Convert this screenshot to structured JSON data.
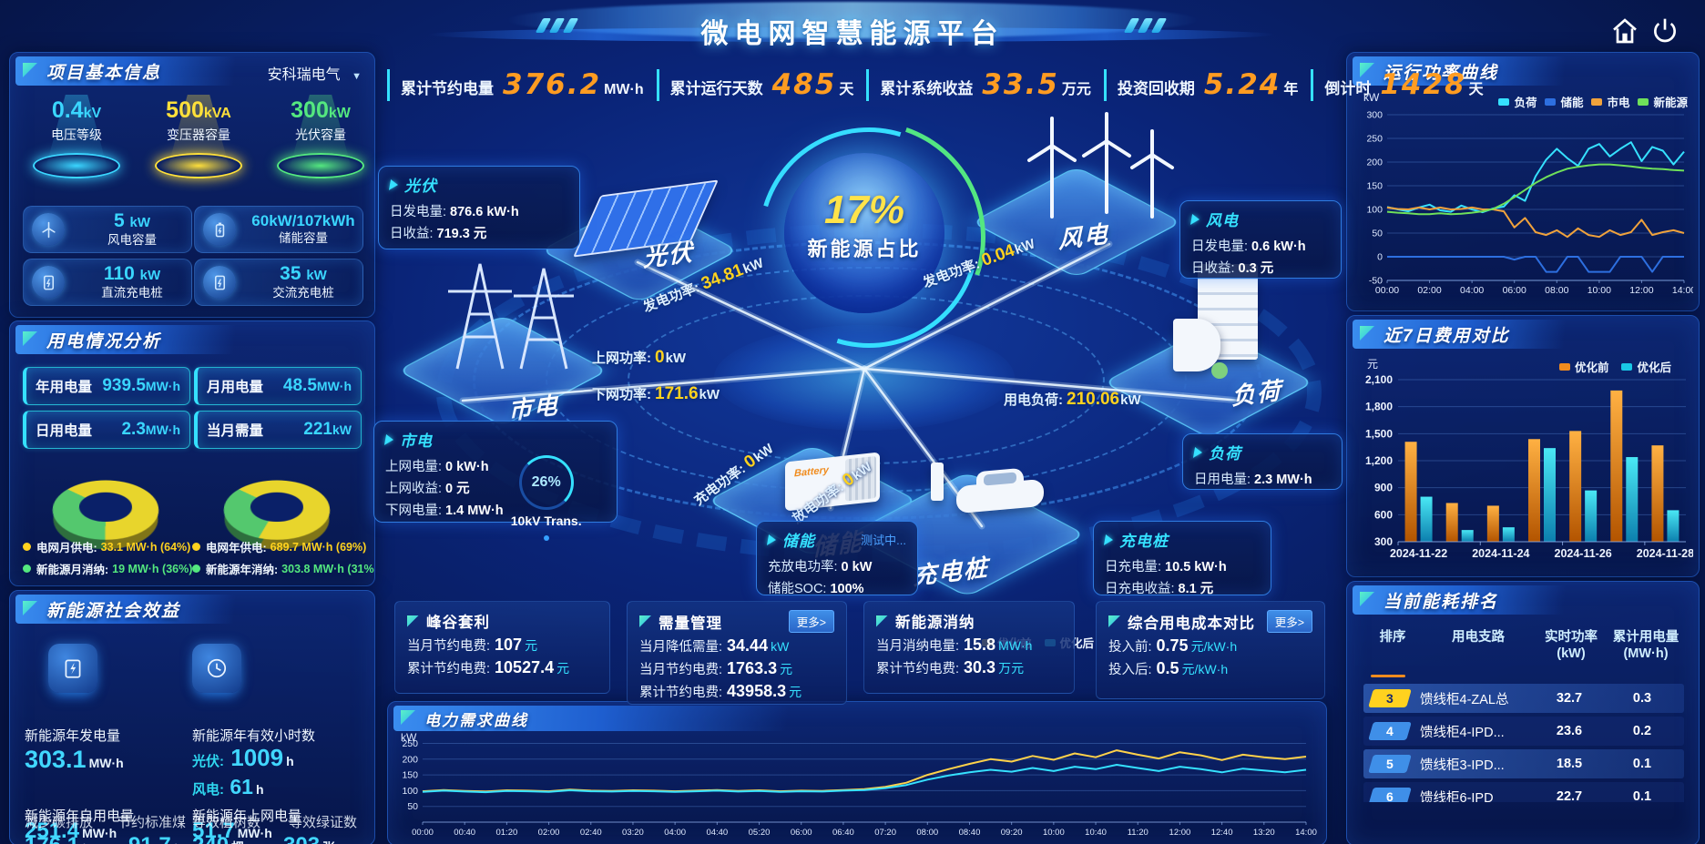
{
  "app": {
    "title": "微电网智慧能源平台"
  },
  "kpi_bar": [
    {
      "label": "累计节约电量",
      "value": "376.2",
      "unit": "MW·h"
    },
    {
      "label": "累计运行天数",
      "value": "485",
      "unit": "天"
    },
    {
      "label": "累计系统收益",
      "value": "33.5",
      "unit": "万元"
    },
    {
      "label": "投资回收期",
      "value": "5.24",
      "unit": "年"
    },
    {
      "label": "倒计时",
      "value": "1428",
      "unit": "天"
    }
  ],
  "project_info": {
    "title": "项目基本信息",
    "company": "安科瑞电气",
    "cones": [
      {
        "value": "0.4",
        "unit": "kV",
        "label": "电压等级",
        "color": "#3ad6ff"
      },
      {
        "value": "500",
        "unit": "kVA",
        "label": "变压器容量",
        "color": "#ffe03a"
      },
      {
        "value": "300",
        "unit": "kW",
        "label": "光伏容量",
        "color": "#54e87f"
      }
    ],
    "cards": [
      {
        "value": "5",
        "unit": "kW",
        "label": "风电容量",
        "icon": "wind-icon"
      },
      {
        "value": "60kW/107kWh",
        "unit": "",
        "label": "储能容量",
        "icon": "battery-icon"
      },
      {
        "value": "110",
        "unit": "kW",
        "label": "直流充电桩",
        "icon": "charger-icon"
      },
      {
        "value": "35",
        "unit": "kW",
        "label": "交流充电桩",
        "icon": "charger-icon"
      }
    ]
  },
  "power_analysis": {
    "title": "用电情况分析",
    "stats": [
      {
        "label": "年用电量",
        "value": "939.5",
        "unit": "MW·h"
      },
      {
        "label": "月用电量",
        "value": "48.5",
        "unit": "MW·h"
      },
      {
        "label": "日用电量",
        "value": "2.3",
        "unit": "MW·h"
      },
      {
        "label": "当月需量",
        "value": "221",
        "unit": "kW"
      }
    ],
    "donut_month": {
      "grid_pct": 64,
      "colors": [
        "#e8d52c",
        "#54c86e"
      ]
    },
    "donut_year": {
      "grid_pct": 69,
      "colors": [
        "#e8d52c",
        "#54c86e"
      ]
    },
    "legends": [
      [
        {
          "label": "电网月供电:",
          "value": "33.1 MW·h (64%)",
          "color": "#ffd21f"
        },
        {
          "label": "新能源月消纳:",
          "value": "19 MW·h (36%)",
          "color": "#54e87f"
        }
      ],
      [
        {
          "label": "电网年供电:",
          "value": "689.7 MW·h (69%)",
          "color": "#ffd21f"
        },
        {
          "label": "新能源年消纳:",
          "value": "303.8 MW·h (31%",
          "color": "#54e87f"
        }
      ]
    ]
  },
  "social_benefit": {
    "title": "新能源社会效益",
    "gen_label": "新能源年发电量",
    "gen_value": "303.1",
    "gen_unit": "MW·h",
    "hours_label": "新能源年有效小时数",
    "pv_label": "光伏:",
    "pv_value": "1009",
    "pv_unit": "h",
    "wind_label": "风电:",
    "wind_value": "61",
    "wind_unit": "h",
    "self_label": "新能源年自用电量",
    "self_value": "251.4",
    "self_unit": "MW·h",
    "grid_label": "新能源年上网电量",
    "grid_value": "51.7",
    "grid_unit": "MW·h",
    "co2_label": "减少碳排放",
    "co2_value": "176.1",
    "co2_unit": "t",
    "coal_label": "节约标准煤",
    "coal_value": "91.7",
    "coal_unit": "t",
    "tree_label": "等效植树数",
    "tree_value": "240",
    "tree_unit": "棵",
    "cert_label": "等效绿证数",
    "cert_value": "303",
    "cert_unit": "张"
  },
  "center": {
    "orb": {
      "value": "17%",
      "label": "新能源占比"
    },
    "nodes": [
      {
        "label": "光伏"
      },
      {
        "label": "风电"
      },
      {
        "label": "市电"
      },
      {
        "label": "储能"
      },
      {
        "label": "充电桩"
      },
      {
        "label": "负荷"
      }
    ],
    "boxes": {
      "pv": {
        "title": "光伏",
        "rows": [
          {
            "label": "日发电量:",
            "value": "876.6 kW·h"
          },
          {
            "label": "日收益:",
            "value": "719.3 元"
          }
        ]
      },
      "wind": {
        "title": "风电",
        "rows": [
          {
            "label": "日发电量:",
            "value": "0.6 kW·h"
          },
          {
            "label": "日收益:",
            "value": "0.3 元"
          }
        ]
      },
      "grid": {
        "title": "市电",
        "rows": [
          {
            "label": "上网电量:",
            "value": "0 kW·h"
          },
          {
            "label": "上网收益:",
            "value": "0 元"
          },
          {
            "label": "下网电量:",
            "value": "1.4 MW·h"
          }
        ],
        "gauge": {
          "value": "26%",
          "label": "10kV Trans."
        }
      },
      "storage": {
        "title": "储能",
        "link": "测试中...",
        "rows": [
          {
            "label": "充放电功率:",
            "value": "0 kW"
          },
          {
            "label": "储能SOC:",
            "value": "100%"
          }
        ]
      },
      "charger": {
        "title": "充电桩",
        "rows": [
          {
            "label": "日充电量:",
            "value": "10.5 kW·h"
          },
          {
            "label": "日充电收益:",
            "value": "8.1 元"
          }
        ]
      },
      "load": {
        "title": "负荷",
        "rows": [
          {
            "label": "日用电量:",
            "value": "2.3 MW·h"
          }
        ]
      }
    },
    "flows": [
      {
        "label": "发电功率:",
        "value": "34.81",
        "unit": "kW"
      },
      {
        "label": "上网功率:",
        "value": "0",
        "unit": "kW"
      },
      {
        "label": "下网功率:",
        "value": "171.6",
        "unit": "kW"
      },
      {
        "label": "充电功率:",
        "value": "0",
        "unit": "kW"
      },
      {
        "label": "放电功率:",
        "value": "0",
        "unit": "kW"
      },
      {
        "label": "用电负荷:",
        "value": "210.06",
        "unit": "kW"
      },
      {
        "label": "发电功率:",
        "value": "0.04",
        "unit": "kW"
      }
    ],
    "battery_text": "Battery"
  },
  "benefit_cards": [
    {
      "title": "峰谷套利",
      "more": null,
      "rows": [
        {
          "label": "当月节约电费:",
          "value": "107",
          "unit": "元"
        },
        {
          "label": "累计节约电费:",
          "value": "10527.4",
          "unit": "元"
        }
      ]
    },
    {
      "title": "需量管理",
      "more": "更多>",
      "rows": [
        {
          "label": "当月降低需量:",
          "value": "34.44",
          "unit": "kW"
        },
        {
          "label": "当月节约电费:",
          "value": "1763.3",
          "unit": "元"
        },
        {
          "label": "累计节约电费:",
          "value": "43958.3",
          "unit": "元"
        }
      ]
    },
    {
      "title": "新能源消纳",
      "more": null,
      "rows": [
        {
          "label": "当月消纳电量:",
          "value": "15.8",
          "unit": "MW·h"
        },
        {
          "label": "累计节约电费:",
          "value": "30.3",
          "unit": "万元"
        }
      ]
    },
    {
      "title": "综合用电成本对比",
      "more": "更多>",
      "rows": [
        {
          "label": "投入前:",
          "value": "0.75",
          "unit": "元/kW·h"
        },
        {
          "label": "投入后:",
          "value": "0.5",
          "unit": "元/kW·h"
        }
      ]
    }
  ],
  "panel_titles": {
    "demand": "电力需求曲线",
    "power_curve": "运行功率曲线",
    "cost": "近7日费用对比",
    "ranking": "当前能耗排名"
  },
  "ranking": {
    "headers": [
      "排序",
      "用电支路",
      "实时功率\n(kW)",
      "累计用电量\n(MW·h)"
    ],
    "rows": [
      {
        "rank": "3",
        "branch": "馈线柜4-ZAL总",
        "power": "32.7",
        "energy": "0.3",
        "badge": "#ffd21f",
        "badge_text": "#1a2a6e",
        "highlight": true
      },
      {
        "rank": "4",
        "branch": "馈线柜4-IPD...",
        "power": "23.6",
        "energy": "0.2",
        "badge": "#3f8fe8",
        "badge_text": "#ffffff",
        "highlight": false
      },
      {
        "rank": "5",
        "branch": "馈线柜3-IPD...",
        "power": "18.5",
        "energy": "0.1",
        "badge": "#3f8fe8",
        "badge_text": "#ffffff",
        "highlight": true
      },
      {
        "rank": "6",
        "branch": "馈线柜6-IPD",
        "power": "22.7",
        "energy": "0.1",
        "badge": "#3f8fe8",
        "badge_text": "#ffffff",
        "highlight": false
      }
    ]
  },
  "chart_data": [
    {
      "id": "power_curve",
      "type": "line",
      "title": "运行功率曲线",
      "ylabel": "kW",
      "ylim": [
        -50,
        300
      ],
      "yticks": [
        -50,
        0,
        50,
        100,
        150,
        200,
        250,
        300
      ],
      "xticks": [
        "00:00",
        "02:00",
        "04:00",
        "06:00",
        "08:00",
        "10:00",
        "12:00",
        "14:00"
      ],
      "grid": true,
      "legend_position": "top",
      "series": [
        {
          "name": "负荷",
          "color": "#35e1ff",
          "values": [
            105,
            100,
            96,
            104,
            110,
            98,
            95,
            108,
            100,
            94,
            102,
            106,
            130,
            118,
            170,
            205,
            228,
            208,
            192,
            228,
            238,
            212,
            228,
            242,
            202,
            232,
            224,
            195,
            222
          ]
        },
        {
          "name": "储能",
          "color": "#2d6fe0",
          "values": [
            0,
            0,
            0,
            0,
            0,
            0,
            0,
            0,
            0,
            0,
            0,
            0,
            -6,
            0,
            0,
            -32,
            -32,
            0,
            0,
            -32,
            -32,
            -32,
            0,
            0,
            0,
            -32,
            0,
            0,
            0
          ]
        },
        {
          "name": "市电",
          "color": "#f0a23c",
          "values": [
            104,
            101,
            100,
            104,
            100,
            104,
            100,
            101,
            104,
            100,
            100,
            96,
            62,
            82,
            52,
            46,
            56,
            42,
            60,
            46,
            42,
            56,
            46,
            52,
            78,
            46,
            52,
            56,
            50
          ]
        },
        {
          "name": "新能源",
          "color": "#6fe05a",
          "values": [
            95,
            93,
            92,
            90,
            90,
            92,
            90,
            91,
            93,
            96,
            101,
            112,
            126,
            141,
            156,
            168,
            178,
            186,
            190,
            193,
            195,
            195,
            193,
            191,
            188,
            186,
            185,
            183,
            182
          ]
        }
      ]
    },
    {
      "id": "cost_compare",
      "type": "bar",
      "title": "近7日费用对比",
      "ylabel": "元",
      "ylim": [
        300,
        2100
      ],
      "yticks": [
        300,
        600,
        900,
        1200,
        1500,
        1800,
        2100
      ],
      "categories": [
        "2024-11-22",
        "2024-11-23",
        "2024-11-24",
        "2024-11-25",
        "2024-11-26",
        "2024-11-27",
        "2024-11-28"
      ],
      "xtick_idx": [
        0,
        2,
        4,
        6
      ],
      "grid": true,
      "legend_position": "top-right",
      "series": [
        {
          "name": "优化前",
          "color": "#f08c1e",
          "color_top": "#ffb143",
          "color_bottom": "#b35400",
          "values": [
            1410,
            730,
            700,
            1440,
            1530,
            1980,
            1370
          ]
        },
        {
          "name": "优化后",
          "color": "#19c8e6",
          "color_top": "#4ae8f5",
          "color_bottom": "#0c7fae",
          "values": [
            800,
            430,
            460,
            1340,
            870,
            1240,
            650
          ]
        }
      ]
    },
    {
      "id": "demand_curve",
      "type": "line",
      "title": "电力需求曲线",
      "ylabel": "kW",
      "ylim": [
        0,
        260
      ],
      "yticks": [
        50,
        100,
        150,
        200,
        250
      ],
      "xticks": [
        "00:00",
        "00:40",
        "01:20",
        "02:00",
        "02:40",
        "03:20",
        "04:00",
        "04:40",
        "05:20",
        "06:00",
        "06:40",
        "07:20",
        "08:00",
        "08:40",
        "09:20",
        "10:00",
        "10:40",
        "11:20",
        "12:00",
        "12:40",
        "13:20",
        "14:00"
      ],
      "grid": true,
      "legend_position": "top-right",
      "series": [
        {
          "name": "优化前",
          "color": "#ffd24a",
          "values": [
            98,
            102,
            99,
            97,
            101,
            100,
            98,
            103,
            100,
            99,
            101,
            100,
            98,
            100,
            102,
            99,
            101,
            98,
            100,
            99,
            102,
            105,
            112,
            125,
            150,
            168,
            185,
            200,
            192,
            210,
            198,
            218,
            206,
            228,
            214,
            202,
            222,
            212,
            197,
            214,
            206,
            200,
            208
          ]
        },
        {
          "name": "优化后",
          "color": "#35e1ff",
          "values": [
            96,
            100,
            97,
            95,
            99,
            98,
            96,
            101,
            98,
            97,
            99,
            98,
            96,
            98,
            100,
            97,
            99,
            96,
            98,
            97,
            100,
            102,
            108,
            118,
            135,
            148,
            158,
            166,
            160,
            172,
            162,
            176,
            168,
            182,
            172,
            162,
            176,
            168,
            158,
            170,
            164,
            158,
            166
          ]
        }
      ]
    }
  ]
}
